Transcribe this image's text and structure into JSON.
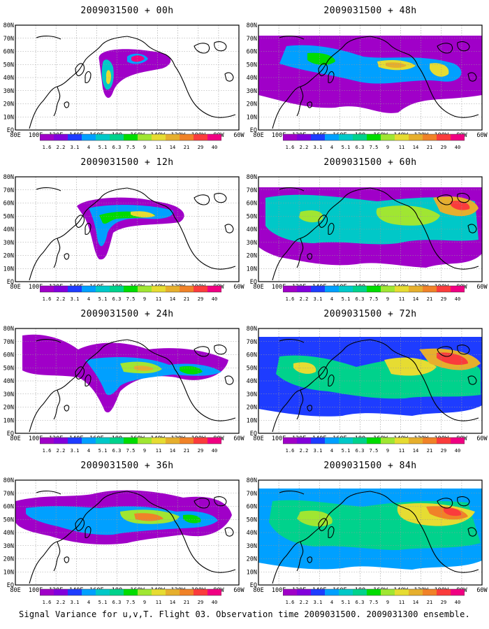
{
  "panels": [
    {
      "title": "2009031500 + 00h"
    },
    {
      "title": "2009031500 + 48h"
    },
    {
      "title": "2009031500 + 12h"
    },
    {
      "title": "2009031500 + 60h"
    },
    {
      "title": "2009031500 + 24h"
    },
    {
      "title": "2009031500 + 72h"
    },
    {
      "title": "2009031500 + 36h"
    },
    {
      "title": "2009031500 + 84h"
    }
  ],
  "lon_labels": [
    "80E",
    "100E",
    "120E",
    "140E",
    "160E",
    "180",
    "160W",
    "140W",
    "120W",
    "100W",
    "80W",
    "60W"
  ],
  "lat_labels": [
    "80N",
    "70N",
    "60N",
    "50N",
    "40N",
    "30N",
    "20N",
    "10N",
    "EQ"
  ],
  "colorbar": {
    "levels": [
      "1.6",
      "2.2",
      "3.1",
      "4",
      "5.1",
      "6.3",
      "7.5",
      "9",
      "11",
      "14",
      "21",
      "29",
      "40"
    ],
    "colors": [
      "#a000c8",
      "#8200dc",
      "#1e3cff",
      "#00a0ff",
      "#00c8c8",
      "#00d28c",
      "#00dc00",
      "#a0e632",
      "#e6dc32",
      "#e6af2d",
      "#f08228",
      "#fa3c3c",
      "#f00082"
    ]
  },
  "footer": "Signal Variance for u,v,T. Flight 03. Observation time 2009031500. 2009031300 ensemble."
}
